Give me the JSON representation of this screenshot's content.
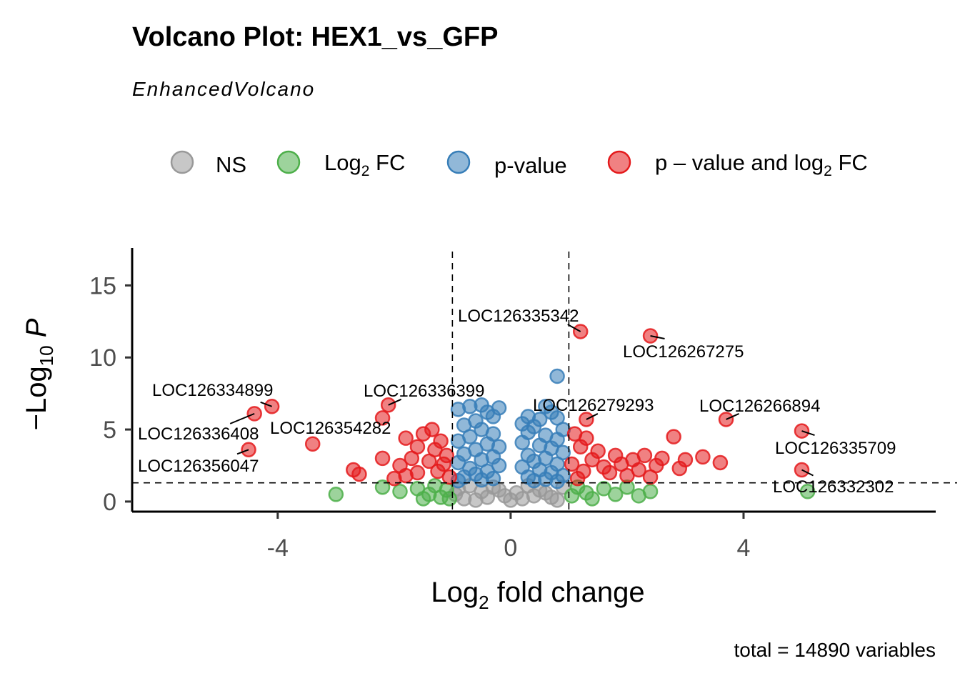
{
  "chart_data": {
    "type": "scatter",
    "title": "Volcano Plot: HEX1_vs_GFP",
    "subtitle": "EnhancedVolcano",
    "xlabel": "Log₂ fold change",
    "ylabel": "−Log₁₀ P",
    "xlim": [
      -6.5,
      7.3
    ],
    "ylim": [
      -0.7,
      17.6
    ],
    "xticks": [
      -4,
      0,
      4
    ],
    "yticks": [
      0,
      5,
      10,
      15
    ],
    "fc_cutoff": 1,
    "p_cutoff_neglog10": 1.3,
    "caption": "total = 14890 variables",
    "legend": {
      "position": "top",
      "entries": [
        {
          "key": "ns",
          "label": "NS",
          "color": "#999999"
        },
        {
          "key": "fc",
          "label_main": "Log",
          "label_sub": "2",
          "label_tail": " FC",
          "color": "#4DAF4A"
        },
        {
          "key": "p",
          "label": "p-value",
          "color": "#377EB8"
        },
        {
          "key": "both",
          "label_main": "p – value and log",
          "label_sub": "2",
          "label_tail": " FC",
          "color": "#E41A1C"
        }
      ]
    },
    "colors": {
      "ns": "#999999",
      "fc": "#4DAF4A",
      "p": "#377EB8",
      "both": "#E41A1C"
    },
    "labeled_points": [
      {
        "name": "LOC126335342",
        "x": 1.2,
        "y": 11.8,
        "group": "both"
      },
      {
        "name": "LOC126267275",
        "x": 2.4,
        "y": 11.5,
        "group": "both"
      },
      {
        "name": "LOC126334899",
        "x": -4.1,
        "y": 6.6,
        "group": "both"
      },
      {
        "name": "LOC126336399",
        "x": -2.1,
        "y": 6.7,
        "group": "both"
      },
      {
        "name": "LOC126279293",
        "x": 1.3,
        "y": 5.7,
        "group": "both"
      },
      {
        "name": "LOC126266894",
        "x": 3.7,
        "y": 5.7,
        "group": "both"
      },
      {
        "name": "LOC126336408",
        "x": -4.4,
        "y": 6.1,
        "group": "both"
      },
      {
        "name": "LOC126354282",
        "x": -2.2,
        "y": 5.8,
        "group": "both"
      },
      {
        "name": "LOC126335709",
        "x": 5.0,
        "y": 4.9,
        "group": "both"
      },
      {
        "name": "LOC126356047",
        "x": -4.5,
        "y": 3.6,
        "group": "both"
      },
      {
        "name": "LOC126332302",
        "x": 5.0,
        "y": 2.2,
        "group": "both"
      }
    ],
    "points": [
      {
        "x": 0.8,
        "y": 8.7,
        "group": "p"
      },
      {
        "x": -0.9,
        "y": 6.4,
        "group": "p"
      },
      {
        "x": -0.7,
        "y": 6.6,
        "group": "p"
      },
      {
        "x": -0.5,
        "y": 6.7,
        "group": "p"
      },
      {
        "x": -0.4,
        "y": 6.2,
        "group": "p"
      },
      {
        "x": -0.2,
        "y": 6.5,
        "group": "p"
      },
      {
        "x": -0.3,
        "y": 5.9,
        "group": "p"
      },
      {
        "x": -0.6,
        "y": 5.6,
        "group": "p"
      },
      {
        "x": -0.8,
        "y": 5.3,
        "group": "p"
      },
      {
        "x": -0.5,
        "y": 5.0,
        "group": "p"
      },
      {
        "x": -0.3,
        "y": 4.7,
        "group": "p"
      },
      {
        "x": -0.7,
        "y": 4.5,
        "group": "p"
      },
      {
        "x": -0.9,
        "y": 4.2,
        "group": "p"
      },
      {
        "x": -0.4,
        "y": 4.0,
        "group": "p"
      },
      {
        "x": -0.2,
        "y": 3.8,
        "group": "p"
      },
      {
        "x": -0.6,
        "y": 3.6,
        "group": "p"
      },
      {
        "x": -0.8,
        "y": 3.3,
        "group": "p"
      },
      {
        "x": -0.3,
        "y": 3.1,
        "group": "p"
      },
      {
        "x": -0.5,
        "y": 2.9,
        "group": "p"
      },
      {
        "x": -0.9,
        "y": 2.7,
        "group": "p"
      },
      {
        "x": -0.2,
        "y": 2.5,
        "group": "p"
      },
      {
        "x": -0.7,
        "y": 2.3,
        "group": "p"
      },
      {
        "x": -0.4,
        "y": 2.1,
        "group": "p"
      },
      {
        "x": -0.6,
        "y": 1.9,
        "group": "p"
      },
      {
        "x": -0.8,
        "y": 1.7,
        "group": "p"
      },
      {
        "x": -0.3,
        "y": 1.6,
        "group": "p"
      },
      {
        "x": -0.5,
        "y": 1.5,
        "group": "p"
      },
      {
        "x": -0.9,
        "y": 1.45,
        "group": "p"
      },
      {
        "x": 0.2,
        "y": 5.4,
        "group": "p"
      },
      {
        "x": 0.3,
        "y": 5.9,
        "group": "p"
      },
      {
        "x": 0.5,
        "y": 5.7,
        "group": "p"
      },
      {
        "x": 0.6,
        "y": 6.6,
        "group": "p"
      },
      {
        "x": 0.7,
        "y": 6.2,
        "group": "p"
      },
      {
        "x": 0.8,
        "y": 5.8,
        "group": "p"
      },
      {
        "x": 0.4,
        "y": 5.2,
        "group": "p"
      },
      {
        "x": 0.9,
        "y": 5.0,
        "group": "p"
      },
      {
        "x": 0.3,
        "y": 4.8,
        "group": "p"
      },
      {
        "x": 0.6,
        "y": 4.6,
        "group": "p"
      },
      {
        "x": 0.8,
        "y": 4.3,
        "group": "p"
      },
      {
        "x": 0.2,
        "y": 4.1,
        "group": "p"
      },
      {
        "x": 0.5,
        "y": 3.9,
        "group": "p"
      },
      {
        "x": 0.7,
        "y": 3.7,
        "group": "p"
      },
      {
        "x": 0.9,
        "y": 3.4,
        "group": "p"
      },
      {
        "x": 0.3,
        "y": 3.2,
        "group": "p"
      },
      {
        "x": 0.6,
        "y": 3.0,
        "group": "p"
      },
      {
        "x": 0.4,
        "y": 2.8,
        "group": "p"
      },
      {
        "x": 0.8,
        "y": 2.6,
        "group": "p"
      },
      {
        "x": 0.2,
        "y": 2.4,
        "group": "p"
      },
      {
        "x": 0.5,
        "y": 2.2,
        "group": "p"
      },
      {
        "x": 0.7,
        "y": 2.0,
        "group": "p"
      },
      {
        "x": 0.9,
        "y": 1.8,
        "group": "p"
      },
      {
        "x": 0.3,
        "y": 1.7,
        "group": "p"
      },
      {
        "x": 0.6,
        "y": 1.55,
        "group": "p"
      },
      {
        "x": 0.4,
        "y": 1.45,
        "group": "p"
      },
      {
        "x": 0.8,
        "y": 1.4,
        "group": "p"
      },
      {
        "x": -3.4,
        "y": 4.0,
        "group": "both"
      },
      {
        "x": -2.7,
        "y": 2.2,
        "group": "both"
      },
      {
        "x": -2.6,
        "y": 1.9,
        "group": "both"
      },
      {
        "x": -2.2,
        "y": 3.0,
        "group": "both"
      },
      {
        "x": -1.9,
        "y": 2.5,
        "group": "both"
      },
      {
        "x": -1.8,
        "y": 4.4,
        "group": "both"
      },
      {
        "x": -1.7,
        "y": 3.0,
        "group": "both"
      },
      {
        "x": -1.6,
        "y": 2.0,
        "group": "both"
      },
      {
        "x": -1.5,
        "y": 4.7,
        "group": "both"
      },
      {
        "x": -1.4,
        "y": 2.8,
        "group": "both"
      },
      {
        "x": -1.35,
        "y": 5.0,
        "group": "both"
      },
      {
        "x": -1.3,
        "y": 3.6,
        "group": "both"
      },
      {
        "x": -1.25,
        "y": 2.1,
        "group": "both"
      },
      {
        "x": -1.2,
        "y": 4.2,
        "group": "both"
      },
      {
        "x": -1.15,
        "y": 2.6,
        "group": "both"
      },
      {
        "x": -1.1,
        "y": 3.2,
        "group": "both"
      },
      {
        "x": -1.05,
        "y": 1.7,
        "group": "both"
      },
      {
        "x": -2.0,
        "y": 1.6,
        "group": "both"
      },
      {
        "x": -1.8,
        "y": 1.8,
        "group": "both"
      },
      {
        "x": -1.6,
        "y": 3.8,
        "group": "both"
      },
      {
        "x": 1.1,
        "y": 4.7,
        "group": "both"
      },
      {
        "x": 1.2,
        "y": 3.8,
        "group": "both"
      },
      {
        "x": 1.3,
        "y": 4.4,
        "group": "both"
      },
      {
        "x": 1.4,
        "y": 2.9,
        "group": "both"
      },
      {
        "x": 1.5,
        "y": 3.5,
        "group": "both"
      },
      {
        "x": 1.6,
        "y": 2.4,
        "group": "both"
      },
      {
        "x": 1.7,
        "y": 2.0,
        "group": "both"
      },
      {
        "x": 1.8,
        "y": 3.2,
        "group": "both"
      },
      {
        "x": 1.9,
        "y": 2.6,
        "group": "both"
      },
      {
        "x": 2.0,
        "y": 1.8,
        "group": "both"
      },
      {
        "x": 2.1,
        "y": 2.9,
        "group": "both"
      },
      {
        "x": 2.2,
        "y": 2.2,
        "group": "both"
      },
      {
        "x": 2.3,
        "y": 3.2,
        "group": "both"
      },
      {
        "x": 2.4,
        "y": 1.7,
        "group": "both"
      },
      {
        "x": 2.5,
        "y": 2.5,
        "group": "both"
      },
      {
        "x": 2.6,
        "y": 3.0,
        "group": "both"
      },
      {
        "x": 2.8,
        "y": 4.5,
        "group": "both"
      },
      {
        "x": 2.9,
        "y": 2.3,
        "group": "both"
      },
      {
        "x": 3.0,
        "y": 2.9,
        "group": "both"
      },
      {
        "x": 3.3,
        "y": 3.1,
        "group": "both"
      },
      {
        "x": 3.6,
        "y": 2.7,
        "group": "both"
      },
      {
        "x": 1.15,
        "y": 1.6,
        "group": "both"
      },
      {
        "x": 1.25,
        "y": 2.1,
        "group": "both"
      },
      {
        "x": 1.05,
        "y": 2.6,
        "group": "both"
      },
      {
        "x": -3.0,
        "y": 0.5,
        "group": "fc"
      },
      {
        "x": -2.2,
        "y": 1.0,
        "group": "fc"
      },
      {
        "x": -1.9,
        "y": 0.7,
        "group": "fc"
      },
      {
        "x": -1.6,
        "y": 0.9,
        "group": "fc"
      },
      {
        "x": -1.4,
        "y": 0.5,
        "group": "fc"
      },
      {
        "x": -1.3,
        "y": 1.1,
        "group": "fc"
      },
      {
        "x": -1.2,
        "y": 0.3,
        "group": "fc"
      },
      {
        "x": -1.1,
        "y": 0.8,
        "group": "fc"
      },
      {
        "x": -1.05,
        "y": 0.2,
        "group": "fc"
      },
      {
        "x": -1.5,
        "y": 0.2,
        "group": "fc"
      },
      {
        "x": 1.05,
        "y": 0.4,
        "group": "fc"
      },
      {
        "x": 1.15,
        "y": 1.0,
        "group": "fc"
      },
      {
        "x": 1.3,
        "y": 0.6,
        "group": "fc"
      },
      {
        "x": 1.4,
        "y": 0.2,
        "group": "fc"
      },
      {
        "x": 1.6,
        "y": 0.9,
        "group": "fc"
      },
      {
        "x": 1.8,
        "y": 0.5,
        "group": "fc"
      },
      {
        "x": 2.0,
        "y": 1.0,
        "group": "fc"
      },
      {
        "x": 2.2,
        "y": 0.4,
        "group": "fc"
      },
      {
        "x": 2.4,
        "y": 0.7,
        "group": "fc"
      },
      {
        "x": 5.1,
        "y": 0.7,
        "group": "fc"
      },
      {
        "x": -0.9,
        "y": 0.9,
        "group": "ns"
      },
      {
        "x": -0.7,
        "y": 1.1,
        "group": "ns"
      },
      {
        "x": -0.5,
        "y": 0.7,
        "group": "ns"
      },
      {
        "x": -0.3,
        "y": 1.0,
        "group": "ns"
      },
      {
        "x": -0.1,
        "y": 0.4,
        "group": "ns"
      },
      {
        "x": 0.1,
        "y": 0.6,
        "group": "ns"
      },
      {
        "x": 0.3,
        "y": 1.1,
        "group": "ns"
      },
      {
        "x": 0.5,
        "y": 0.8,
        "group": "ns"
      },
      {
        "x": 0.7,
        "y": 0.3,
        "group": "ns"
      },
      {
        "x": 0.9,
        "y": 1.0,
        "group": "ns"
      },
      {
        "x": -0.8,
        "y": 0.2,
        "group": "ns"
      },
      {
        "x": -0.6,
        "y": 0.1,
        "group": "ns"
      },
      {
        "x": -0.4,
        "y": 0.3,
        "group": "ns"
      },
      {
        "x": -0.2,
        "y": 0.8,
        "group": "ns"
      },
      {
        "x": 0.0,
        "y": 0.1,
        "group": "ns"
      },
      {
        "x": 0.2,
        "y": 0.2,
        "group": "ns"
      },
      {
        "x": 0.4,
        "y": 0.4,
        "group": "ns"
      },
      {
        "x": 0.6,
        "y": 0.6,
        "group": "ns"
      },
      {
        "x": 0.8,
        "y": 0.1,
        "group": "ns"
      },
      {
        "x": -0.95,
        "y": 0.5,
        "group": "ns"
      }
    ]
  }
}
